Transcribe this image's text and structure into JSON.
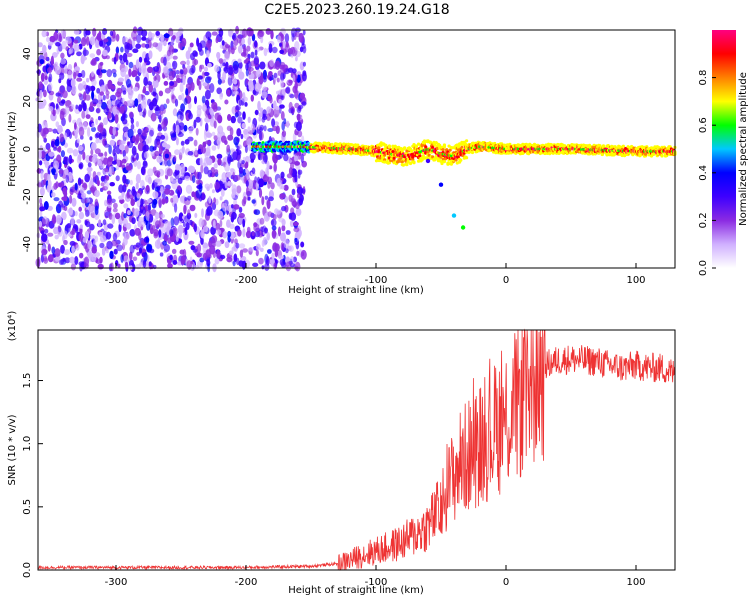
{
  "title": "C2E5.2023.260.19.24.G18",
  "chart_data": [
    {
      "type": "heatmap",
      "panel": "spectrogram",
      "xlabel": "Height of straight line (km)",
      "ylabel": "Frequency (Hz)",
      "xlim": [
        -360,
        130
      ],
      "ylim": [
        -50,
        50
      ],
      "xticks": [
        -300,
        -200,
        -100,
        0,
        100
      ],
      "yticks": [
        -40,
        -20,
        0,
        20,
        40
      ],
      "colorbar": {
        "label": "Normalized spectral amplitude",
        "range": [
          0.0,
          1.0
        ],
        "ticks": [
          "0.0",
          "0.2",
          "0.4",
          "0.6",
          "0.8"
        ],
        "colormap": [
          "#ffffff",
          "#d0b0ff",
          "#8b2be2",
          "#3d00ff",
          "#0000ff",
          "#00c8ff",
          "#00ff00",
          "#ffff00",
          "#ff8000",
          "#ff0000",
          "#ff0080"
        ]
      },
      "regions": [
        {
          "description": "broadband noise",
          "x": [
            -360,
            -155
          ],
          "y": [
            -50,
            50
          ],
          "level": 0.2
        },
        {
          "description": "signal trace",
          "x": [
            -195,
            130
          ],
          "y_center": 0,
          "level": 0.8
        }
      ],
      "trace_center": [
        [
          -195,
          1
        ],
        [
          -160,
          1
        ],
        [
          -120,
          0
        ],
        [
          -100,
          -1
        ],
        [
          -90,
          -2
        ],
        [
          -80,
          -3
        ],
        [
          -70,
          -2
        ],
        [
          -60,
          0
        ],
        [
          -50,
          -2
        ],
        [
          -40,
          -3
        ],
        [
          -30,
          0
        ],
        [
          -20,
          1
        ],
        [
          0,
          0
        ],
        [
          50,
          0
        ],
        [
          100,
          -1
        ],
        [
          130,
          -1
        ]
      ],
      "side_branch": [
        [
          -60,
          -5
        ],
        [
          -50,
          -15
        ],
        [
          -40,
          -28
        ],
        [
          -33,
          -33
        ]
      ]
    },
    {
      "type": "line",
      "panel": "snr",
      "xlabel": "Height of straight line (km)",
      "ylabel": "SNR (10 * v/v)",
      "y_multiplier": "(x10⁴)",
      "xlim": [
        -360,
        130
      ],
      "ylim": [
        0.0,
        1.9
      ],
      "xticks": [
        -300,
        -200,
        -100,
        0,
        100
      ],
      "yticks": [
        "0.0",
        "0.5",
        "1.0",
        "1.5"
      ],
      "color": "#ee3333",
      "series": [
        {
          "x": [
            -360,
            -300,
            -250,
            -200,
            -150,
            -130,
            -120,
            -110,
            -100,
            -90,
            -80,
            -70,
            -60,
            -50,
            -45,
            -40,
            -35,
            -30,
            -25,
            -20,
            -15,
            -10,
            -5,
            0,
            5,
            10,
            20,
            30,
            40,
            50,
            60,
            70,
            80,
            90,
            100,
            110,
            120,
            130
          ],
          "y": [
            0.02,
            0.02,
            0.02,
            0.02,
            0.03,
            0.05,
            0.08,
            0.12,
            0.15,
            0.18,
            0.22,
            0.28,
            0.35,
            0.5,
            0.65,
            0.75,
            0.85,
            0.9,
            0.95,
            1.0,
            1.05,
            1.1,
            1.15,
            1.2,
            1.25,
            1.35,
            1.5,
            1.62,
            1.66,
            1.67,
            1.66,
            1.65,
            1.62,
            1.6,
            1.62,
            1.6,
            1.6,
            1.55
          ]
        }
      ]
    }
  ]
}
